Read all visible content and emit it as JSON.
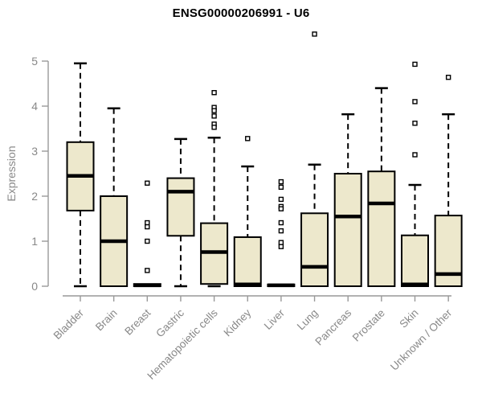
{
  "title": "ENSG00000206991 - U6",
  "chart_data": {
    "type": "boxplot",
    "title": "ENSG00000206991 - U6",
    "ylabel": "Expression",
    "xlabel": "",
    "ylim": [
      0,
      5
    ],
    "yticks": [
      0,
      1,
      2,
      3,
      4,
      5
    ],
    "grid": false,
    "legend": false,
    "categories": [
      "Bladder",
      "Brain",
      "Breast",
      "Gastric",
      "Hematopoietic cells",
      "Kidney",
      "Liver",
      "Lung",
      "Pancreas",
      "Prostate",
      "Skin",
      "Unknown / Other"
    ],
    "boxes": [
      {
        "category": "Bladder",
        "low": 0,
        "q1": 1.68,
        "median": 2.45,
        "q3": 3.2,
        "high": 4.95,
        "outliers": []
      },
      {
        "category": "Brain",
        "low": 0,
        "q1": 0.0,
        "median": 1.0,
        "q3": 2.0,
        "high": 3.95,
        "outliers": []
      },
      {
        "category": "Breast",
        "low": 0,
        "q1": 0.0,
        "median": 0.02,
        "q3": 0.05,
        "high": 0.05,
        "outliers": [
          2.29,
          1.41,
          1.32,
          1.0,
          0.35
        ]
      },
      {
        "category": "Gastric",
        "low": 0,
        "q1": 1.12,
        "median": 2.1,
        "q3": 2.4,
        "high": 3.27,
        "outliers": []
      },
      {
        "category": "Hematopoietic cells",
        "low": 0,
        "q1": 0.05,
        "median": 0.76,
        "q3": 1.4,
        "high": 3.3,
        "outliers": [
          4.3,
          3.97,
          3.9,
          3.78,
          3.6,
          3.53
        ]
      },
      {
        "category": "Kidney",
        "low": 0,
        "q1": 0.0,
        "median": 0.04,
        "q3": 1.09,
        "high": 2.66,
        "outliers": [
          3.28
        ]
      },
      {
        "category": "Liver",
        "low": 0,
        "q1": 0.0,
        "median": 0.02,
        "q3": 0.04,
        "high": 0.04,
        "outliers": [
          2.32,
          2.2,
          1.93,
          1.77,
          1.72,
          1.41,
          1.23,
          0.97,
          0.88
        ]
      },
      {
        "category": "Lung",
        "low": 0,
        "q1": 0.0,
        "median": 0.43,
        "q3": 1.62,
        "high": 2.7,
        "outliers": [
          5.6
        ]
      },
      {
        "category": "Pancreas",
        "low": 0,
        "q1": 0.0,
        "median": 1.55,
        "q3": 2.5,
        "high": 3.82,
        "outliers": []
      },
      {
        "category": "Prostate",
        "low": 0,
        "q1": 0.0,
        "median": 1.84,
        "q3": 2.55,
        "high": 4.4,
        "outliers": []
      },
      {
        "category": "Skin",
        "low": 0,
        "q1": 0.0,
        "median": 0.04,
        "q3": 1.13,
        "high": 2.25,
        "outliers": [
          4.93,
          4.1,
          3.62,
          2.92
        ]
      },
      {
        "category": "Unknown / Other",
        "low": 0,
        "q1": 0.0,
        "median": 0.27,
        "q3": 1.57,
        "high": 3.82,
        "outliers": [
          4.64
        ]
      }
    ],
    "colors": {
      "box_fill": "#EDE8CC",
      "box_stroke": "#000000",
      "median": "#000000",
      "whisker": "#000000",
      "outlier_stroke": "#000000",
      "outlier_fill": "#FFFFFF",
      "axis": "#999999",
      "tick_label": "#888888",
      "title": "#000000",
      "background": "#FFFFFF"
    }
  }
}
